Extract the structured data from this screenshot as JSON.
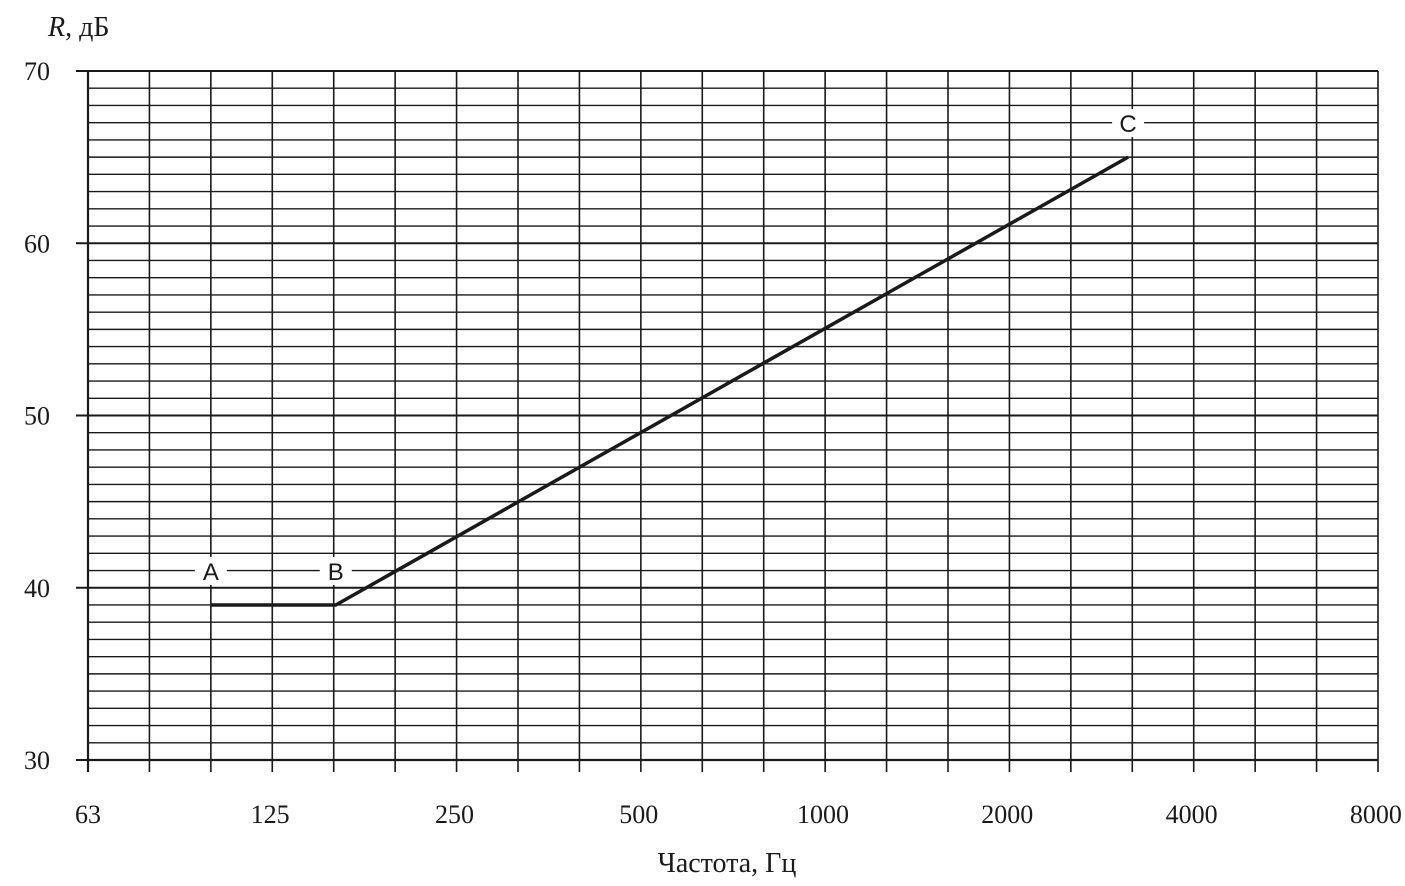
{
  "chart_data": {
    "type": "line",
    "xlabel": "Частота, Гц",
    "ylabel_var": "R",
    "ylabel_unit": ", дБ",
    "x_scale": "log2 (1/3-octave grid)",
    "x_ticks": [
      "63",
      "125",
      "250",
      "500",
      "1000",
      "2000",
      "4000",
      "8000"
    ],
    "y_ticks": [
      "30",
      "40",
      "50",
      "60",
      "70"
    ],
    "ylim": [
      30,
      70
    ],
    "grid": true,
    "series": [
      {
        "color": "#1a1a1a",
        "points": [
          {
            "label": "A",
            "x": 100,
            "y": 39
          },
          {
            "label": "B",
            "x": 160,
            "y": 39
          },
          {
            "label": "C",
            "x": 3150,
            "y": 65
          }
        ]
      }
    ]
  }
}
